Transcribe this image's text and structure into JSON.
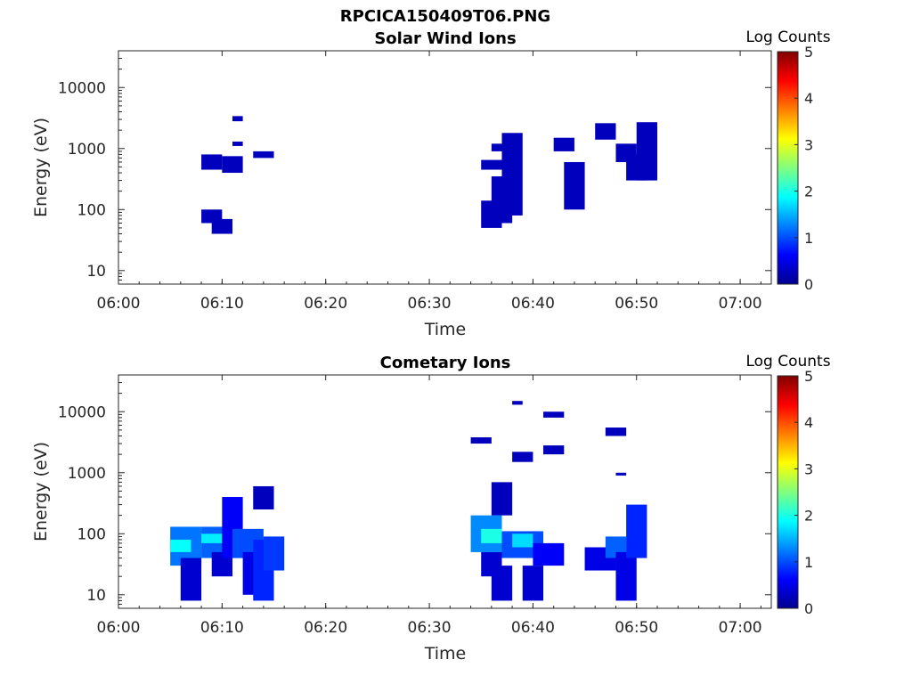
{
  "figure_title": "RPCICA150409T06.PNG",
  "colorbar": {
    "label": "Log Counts",
    "min": 0,
    "max": 5,
    "ticks": [
      "0",
      "1",
      "2",
      "3",
      "4",
      "5"
    ],
    "colormap": "jet"
  },
  "chart_data": [
    {
      "type": "heatmap",
      "title": "Solar Wind Ions",
      "xlabel": "Time",
      "ylabel": "Energy (eV)",
      "x_ticks": [
        "06:00",
        "06:10",
        "06:20",
        "06:30",
        "06:40",
        "06:50",
        "07:00"
      ],
      "y_ticks": [
        "10",
        "100",
        "1000",
        "10000"
      ],
      "y_scale": "log",
      "xlim": [
        "06:00",
        "07:03"
      ],
      "ylim": [
        6,
        40000
      ],
      "colorbar_label": "Log Counts",
      "cells": [
        {
          "t0": "06:08",
          "t1": "06:09",
          "e0": 60,
          "e1": 100,
          "v": 0.3
        },
        {
          "t0": "06:08",
          "t1": "06:09",
          "e0": 450,
          "e1": 800,
          "v": 0.3
        },
        {
          "t0": "06:09",
          "t1": "06:10",
          "e0": 40,
          "e1": 70,
          "v": 0.3
        },
        {
          "t0": "06:10",
          "t1": "06:11",
          "e0": 400,
          "e1": 750,
          "v": 0.3
        },
        {
          "t0": "06:11",
          "t1": "06:11",
          "e0": 1100,
          "e1": 1300,
          "v": 0.3
        },
        {
          "t0": "06:11",
          "t1": "06:11",
          "e0": 2800,
          "e1": 3400,
          "v": 0.3
        },
        {
          "t0": "06:13",
          "t1": "06:14",
          "e0": 700,
          "e1": 900,
          "v": 0.3
        },
        {
          "t0": "06:35",
          "t1": "06:36",
          "e0": 50,
          "e1": 140,
          "v": 0.3
        },
        {
          "t0": "06:35",
          "t1": "06:36",
          "e0": 450,
          "e1": 650,
          "v": 0.3
        },
        {
          "t0": "06:36",
          "t1": "06:37",
          "e0": 60,
          "e1": 350,
          "v": 0.3
        },
        {
          "t0": "06:36",
          "t1": "06:37",
          "e0": 900,
          "e1": 1200,
          "v": 0.3
        },
        {
          "t0": "06:37",
          "t1": "06:38",
          "e0": 80,
          "e1": 1800,
          "v": 0.3
        },
        {
          "t0": "06:42",
          "t1": "06:43",
          "e0": 900,
          "e1": 1500,
          "v": 0.3
        },
        {
          "t0": "06:43",
          "t1": "06:44",
          "e0": 100,
          "e1": 600,
          "v": 0.3
        },
        {
          "t0": "06:46",
          "t1": "06:47",
          "e0": 1400,
          "e1": 2600,
          "v": 0.3
        },
        {
          "t0": "06:48",
          "t1": "06:49",
          "e0": 600,
          "e1": 1200,
          "v": 0.3
        },
        {
          "t0": "06:49",
          "t1": "06:50",
          "e0": 300,
          "e1": 800,
          "v": 0.3
        },
        {
          "t0": "06:50",
          "t1": "06:51",
          "e0": 300,
          "e1": 2700,
          "v": 0.3
        }
      ]
    },
    {
      "type": "heatmap",
      "title": "Cometary Ions",
      "xlabel": "Time",
      "ylabel": "Energy (eV)",
      "x_ticks": [
        "06:00",
        "06:10",
        "06:20",
        "06:30",
        "06:40",
        "06:50",
        "07:00"
      ],
      "y_ticks": [
        "10",
        "100",
        "1000",
        "10000"
      ],
      "y_scale": "log",
      "xlim": [
        "06:00",
        "07:03"
      ],
      "ylim": [
        6,
        40000
      ],
      "colorbar_label": "Log Counts",
      "cells": [
        {
          "t0": "06:05",
          "t1": "06:07",
          "e0": 30,
          "e1": 130,
          "v": 1.2
        },
        {
          "t0": "06:05",
          "t1": "06:06",
          "e0": 50,
          "e1": 80,
          "v": 1.9
        },
        {
          "t0": "06:06",
          "t1": "06:07",
          "e0": 8,
          "e1": 40,
          "v": 0.4
        },
        {
          "t0": "06:08",
          "t1": "06:10",
          "e0": 40,
          "e1": 130,
          "v": 1.1
        },
        {
          "t0": "06:08",
          "t1": "06:09",
          "e0": 70,
          "e1": 100,
          "v": 1.8
        },
        {
          "t0": "06:09",
          "t1": "06:10",
          "e0": 20,
          "e1": 50,
          "v": 0.4
        },
        {
          "t0": "06:10",
          "t1": "06:11",
          "e0": 40,
          "e1": 400,
          "v": 0.6
        },
        {
          "t0": "06:11",
          "t1": "06:13",
          "e0": 40,
          "e1": 120,
          "v": 1.0
        },
        {
          "t0": "06:12",
          "t1": "06:13",
          "e0": 10,
          "e1": 50,
          "v": 0.5
        },
        {
          "t0": "06:13",
          "t1": "06:14",
          "e0": 8,
          "e1": 80,
          "v": 0.8
        },
        {
          "t0": "06:13",
          "t1": "06:14",
          "e0": 250,
          "e1": 600,
          "v": 0.3
        },
        {
          "t0": "06:14",
          "t1": "06:15",
          "e0": 25,
          "e1": 90,
          "v": 0.9
        },
        {
          "t0": "06:34",
          "t1": "06:36",
          "e0": 50,
          "e1": 200,
          "v": 1.3
        },
        {
          "t0": "06:35",
          "t1": "06:36",
          "e0": 70,
          "e1": 120,
          "v": 2.0
        },
        {
          "t0": "06:35",
          "t1": "06:36",
          "e0": 20,
          "e1": 50,
          "v": 0.4
        },
        {
          "t0": "06:36",
          "t1": "06:37",
          "e0": 8,
          "e1": 30,
          "v": 0.4
        },
        {
          "t0": "06:36",
          "t1": "06:37",
          "e0": 200,
          "e1": 700,
          "v": 0.3
        },
        {
          "t0": "06:34",
          "t1": "06:35",
          "e0": 3000,
          "e1": 3800,
          "v": 0.3
        },
        {
          "t0": "06:37",
          "t1": "06:40",
          "e0": 40,
          "e1": 110,
          "v": 1.0
        },
        {
          "t0": "06:38",
          "t1": "06:39",
          "e0": 60,
          "e1": 100,
          "v": 1.7
        },
        {
          "t0": "06:39",
          "t1": "06:40",
          "e0": 8,
          "e1": 30,
          "v": 0.4
        },
        {
          "t0": "06:38",
          "t1": "06:38",
          "e0": 13000,
          "e1": 15000,
          "v": 0.3
        },
        {
          "t0": "06:38",
          "t1": "06:39",
          "e0": 1500,
          "e1": 2200,
          "v": 0.3
        },
        {
          "t0": "06:40",
          "t1": "06:42",
          "e0": 30,
          "e1": 70,
          "v": 0.6
        },
        {
          "t0": "06:41",
          "t1": "06:42",
          "e0": 8000,
          "e1": 10000,
          "v": 0.3
        },
        {
          "t0": "06:41",
          "t1": "06:42",
          "e0": 2000,
          "e1": 2800,
          "v": 0.3
        },
        {
          "t0": "06:45",
          "t1": "06:47",
          "e0": 25,
          "e1": 60,
          "v": 0.5
        },
        {
          "t0": "06:47",
          "t1": "06:48",
          "e0": 40,
          "e1": 90,
          "v": 1.1
        },
        {
          "t0": "06:48",
          "t1": "06:49",
          "e0": 8,
          "e1": 50,
          "v": 0.5
        },
        {
          "t0": "06:49",
          "t1": "06:50",
          "e0": 40,
          "e1": 300,
          "v": 0.8
        },
        {
          "t0": "06:47",
          "t1": "06:48",
          "e0": 4000,
          "e1": 5500,
          "v": 0.3
        },
        {
          "t0": "06:48",
          "t1": "06:48",
          "e0": 900,
          "e1": 1000,
          "v": 0.3
        }
      ]
    }
  ]
}
